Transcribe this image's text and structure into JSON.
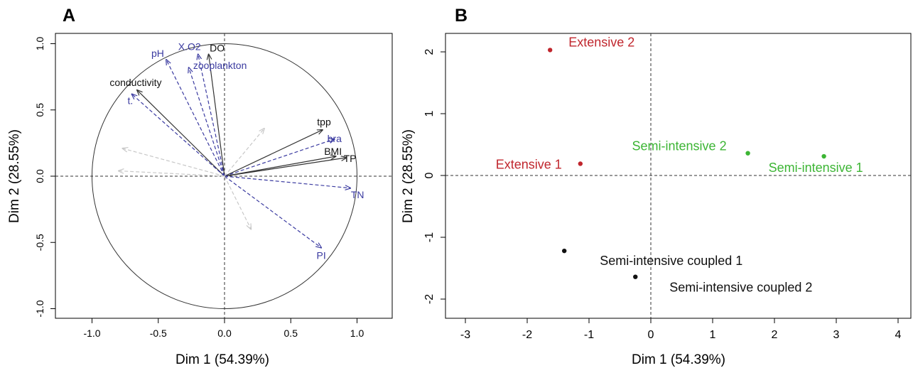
{
  "chart_data": [
    {
      "panel_label": "A",
      "type": "scatter",
      "subtype": "pca-correlation-circle",
      "xlabel": "Dim 1 (54.39%)",
      "ylabel": "Dim 2 (28.55%)",
      "xlim": [
        -1.2,
        1.2
      ],
      "ylim": [
        -1.0,
        1.0
      ],
      "xticks": [
        -1.0,
        -0.5,
        0.0,
        0.5,
        1.0
      ],
      "xtick_labels": [
        "-1.0",
        "-0.5",
        "0.0",
        "0.5",
        "1.0"
      ],
      "yticks": [
        -1.0,
        -0.5,
        0.0,
        0.5,
        1.0
      ],
      "ytick_labels": [
        "-1.0",
        "-0.5",
        "0.0",
        "0.5",
        "1.0"
      ],
      "circle_radius": 1.0,
      "reference_lines": {
        "x": 0,
        "y": 0,
        "style": "dashed"
      },
      "colors": {
        "active": "#333333",
        "supplementary": "#3a3aa0",
        "hidden": "#c8c8c8"
      },
      "vectors": [
        {
          "label": "conductivity",
          "x": -0.66,
          "y": 0.65,
          "group": "active"
        },
        {
          "label": "t.",
          "x": -0.7,
          "y": 0.62,
          "group": "supplementary"
        },
        {
          "label": "pH",
          "x": -0.44,
          "y": 0.88,
          "group": "supplementary"
        },
        {
          "label": "X.O2",
          "x": -0.2,
          "y": 0.92,
          "group": "supplementary"
        },
        {
          "label": "DO",
          "x": -0.12,
          "y": 0.92,
          "group": "active"
        },
        {
          "label": "zooplankton",
          "x": -0.27,
          "y": 0.82,
          "group": "supplementary"
        },
        {
          "label": "tpp",
          "x": 0.74,
          "y": 0.35,
          "group": "active"
        },
        {
          "label": "bra",
          "x": 0.83,
          "y": 0.28,
          "group": "supplementary"
        },
        {
          "label": "BMI",
          "x": 0.84,
          "y": 0.15,
          "group": "active"
        },
        {
          "label": "TP",
          "x": 0.92,
          "y": 0.14,
          "group": "active"
        },
        {
          "label": "TN",
          "x": 0.95,
          "y": -0.09,
          "group": "supplementary"
        },
        {
          "label": "PI",
          "x": 0.73,
          "y": -0.54,
          "group": "supplementary"
        },
        {
          "label": "",
          "x": -0.77,
          "y": 0.21,
          "group": "hidden"
        },
        {
          "label": "",
          "x": -0.8,
          "y": 0.04,
          "group": "hidden"
        },
        {
          "label": "",
          "x": 0.3,
          "y": 0.36,
          "group": "hidden"
        },
        {
          "label": "",
          "x": 0.2,
          "y": -0.4,
          "group": "hidden"
        }
      ]
    },
    {
      "panel_label": "B",
      "type": "scatter",
      "xlabel": "Dim 1 (54.39%)",
      "ylabel": "Dim 2 (28.55%)",
      "xlim": [
        -3.2,
        4.2
      ],
      "ylim": [
        -2.2,
        2.2
      ],
      "xticks": [
        -3,
        -2,
        -1,
        0,
        1,
        2,
        3,
        4
      ],
      "xtick_labels": [
        "-3",
        "-2",
        "-1",
        "0",
        "1",
        "2",
        "3",
        "4"
      ],
      "yticks": [
        -2,
        -1,
        0,
        1,
        2
      ],
      "ytick_labels": [
        "-2",
        "-1",
        "0",
        "1",
        "2"
      ],
      "reference_lines": {
        "x": 0,
        "y": 0,
        "style": "dashed"
      },
      "colors": {
        "extensive": "#c0262d",
        "semi-intensive": "#3cb534",
        "coupled": "#111111"
      },
      "points": [
        {
          "label": "Extensive 2",
          "x": -1.63,
          "y": 2.03,
          "group": "extensive"
        },
        {
          "label": "Extensive 1",
          "x": -1.14,
          "y": 0.19,
          "group": "extensive"
        },
        {
          "label": "Semi-intensive 2",
          "x": 1.57,
          "y": 0.36,
          "group": "semi-intensive"
        },
        {
          "label": "Semi-intensive 1",
          "x": 2.8,
          "y": 0.31,
          "group": "semi-intensive"
        },
        {
          "label": "Semi-intensive coupled 1",
          "x": -1.4,
          "y": -1.22,
          "group": "coupled"
        },
        {
          "label": "Semi-intensive coupled 2",
          "x": -0.25,
          "y": -1.64,
          "group": "coupled"
        }
      ]
    }
  ]
}
